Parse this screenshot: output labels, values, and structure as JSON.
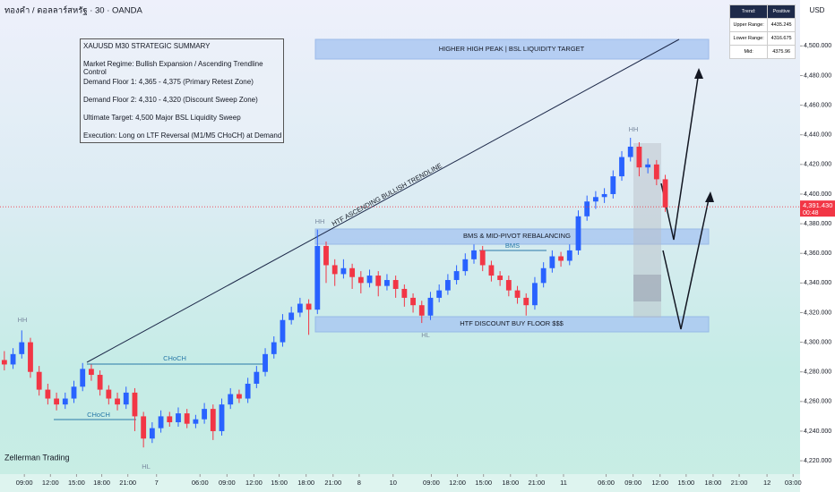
{
  "chart_data": {
    "type": "candlestick",
    "title": "ทองคำ / ดอลลาร์สหรัฐ · 30 · OANDA",
    "currency": "USD",
    "up_color": "#2962ff",
    "down_color": "#f23645",
    "xlim": [
      0,
      92
    ],
    "ylim": [
      4211,
      4531
    ],
    "xticks": [
      {
        "value": 2.8,
        "label": "09:00"
      },
      {
        "value": 5.8,
        "label": "12:00"
      },
      {
        "value": 8.8,
        "label": "15:00"
      },
      {
        "value": 11.7,
        "label": "18:00"
      },
      {
        "value": 14.7,
        "label": "21:00"
      },
      {
        "value": 18.0,
        "label": "7"
      },
      {
        "value": 23.0,
        "label": "06:00"
      },
      {
        "value": 26.1,
        "label": "09:00"
      },
      {
        "value": 29.2,
        "label": "12:00"
      },
      {
        "value": 32.1,
        "label": "15:00"
      },
      {
        "value": 35.2,
        "label": "18:00"
      },
      {
        "value": 38.3,
        "label": "21:00"
      },
      {
        "value": 41.3,
        "label": "8"
      },
      {
        "value": 45.2,
        "label": "10"
      },
      {
        "value": 49.6,
        "label": "09:00"
      },
      {
        "value": 52.6,
        "label": "12:00"
      },
      {
        "value": 55.6,
        "label": "15:00"
      },
      {
        "value": 58.7,
        "label": "18:00"
      },
      {
        "value": 61.7,
        "label": "21:00"
      },
      {
        "value": 64.8,
        "label": "11"
      },
      {
        "value": 69.7,
        "label": "06:00"
      },
      {
        "value": 72.8,
        "label": "09:00"
      },
      {
        "value": 75.9,
        "label": "12:00"
      },
      {
        "value": 78.9,
        "label": "15:00"
      },
      {
        "value": 82.0,
        "label": "18:00"
      },
      {
        "value": 85.0,
        "label": "21:00"
      },
      {
        "value": 88.2,
        "label": "12"
      },
      {
        "value": 91.2,
        "label": "03:00"
      }
    ],
    "yticks": [
      {
        "value": 4220,
        "label": "4,220.000"
      },
      {
        "value": 4240,
        "label": "4,240.000"
      },
      {
        "value": 4260,
        "label": "4,260.000"
      },
      {
        "value": 4280,
        "label": "4,280.000"
      },
      {
        "value": 4300,
        "label": "4,300.000"
      },
      {
        "value": 4320,
        "label": "4,320.000"
      },
      {
        "value": 4340,
        "label": "4,340.000"
      },
      {
        "value": 4360,
        "label": "4,360.000"
      },
      {
        "value": 4380,
        "label": "4,380.000"
      },
      {
        "value": 4400,
        "label": "4,400.000"
      },
      {
        "value": 4420,
        "label": "4,420.000"
      },
      {
        "value": 4440,
        "label": "4,440.000"
      },
      {
        "value": 4460,
        "label": "4,460.000"
      },
      {
        "value": 4480,
        "label": "4,480.000"
      },
      {
        "value": 4500,
        "label": "4,500.000"
      }
    ],
    "last_price": {
      "value": 4391.43,
      "label": "4,391.430"
    },
    "countdown": "00:48",
    "candles": [
      [
        4288,
        4294,
        4281,
        4285
      ],
      [
        4285,
        4296,
        4282,
        4292
      ],
      [
        4292,
        4308,
        4289,
        4300
      ],
      [
        4300,
        4303,
        4276,
        4280
      ],
      [
        4280,
        4284,
        4264,
        4268
      ],
      [
        4268,
        4272,
        4258,
        4262
      ],
      [
        4262,
        4266,
        4254,
        4258
      ],
      [
        4258,
        4266,
        4255,
        4262
      ],
      [
        4262,
        4274,
        4259,
        4270
      ],
      [
        4270,
        4286,
        4267,
        4282
      ],
      [
        4282,
        4285,
        4274,
        4278
      ],
      [
        4278,
        4281,
        4264,
        4268
      ],
      [
        4268,
        4271,
        4258,
        4262
      ],
      [
        4262,
        4266,
        4254,
        4258
      ],
      [
        4258,
        4270,
        4255,
        4266
      ],
      [
        4266,
        4269,
        4240,
        4250
      ],
      [
        4250,
        4253,
        4229,
        4235
      ],
      [
        4235,
        4246,
        4232,
        4242
      ],
      [
        4242,
        4254,
        4239,
        4250
      ],
      [
        4250,
        4253,
        4243,
        4246
      ],
      [
        4246,
        4256,
        4243,
        4252
      ],
      [
        4252,
        4255,
        4242,
        4245
      ],
      [
        4245,
        4251,
        4242,
        4248
      ],
      [
        4248,
        4259,
        4245,
        4255
      ],
      [
        4255,
        4258,
        4234,
        4240
      ],
      [
        4240,
        4262,
        4237,
        4258
      ],
      [
        4258,
        4269,
        4255,
        4265
      ],
      [
        4265,
        4268,
        4259,
        4262
      ],
      [
        4262,
        4276,
        4259,
        4272
      ],
      [
        4272,
        4284,
        4269,
        4280
      ],
      [
        4280,
        4296,
        4277,
        4292
      ],
      [
        4292,
        4304,
        4289,
        4300
      ],
      [
        4300,
        4319,
        4297,
        4315
      ],
      [
        4315,
        4324,
        4312,
        4320
      ],
      [
        4320,
        4330,
        4317,
        4326
      ],
      [
        4326,
        4329,
        4305,
        4322
      ],
      [
        4322,
        4376,
        4319,
        4365
      ],
      [
        4365,
        4368,
        4340,
        4352
      ],
      [
        4352,
        4356,
        4338,
        4346
      ],
      [
        4346,
        4356,
        4343,
        4350
      ],
      [
        4350,
        4353,
        4336,
        4344
      ],
      [
        4344,
        4348,
        4333,
        4340
      ],
      [
        4340,
        4349,
        4337,
        4345
      ],
      [
        4345,
        4348,
        4331,
        4338
      ],
      [
        4338,
        4346,
        4335,
        4342
      ],
      [
        4342,
        4345,
        4330,
        4336
      ],
      [
        4336,
        4339,
        4324,
        4330
      ],
      [
        4330,
        4333,
        4320,
        4325
      ],
      [
        4325,
        4328,
        4313,
        4318
      ],
      [
        4318,
        4334,
        4315,
        4330
      ],
      [
        4330,
        4339,
        4327,
        4335
      ],
      [
        4335,
        4346,
        4332,
        4342
      ],
      [
        4342,
        4352,
        4339,
        4348
      ],
      [
        4348,
        4360,
        4345,
        4356
      ],
      [
        4356,
        4366,
        4353,
        4362
      ],
      [
        4362,
        4365,
        4348,
        4352
      ],
      [
        4352,
        4355,
        4341,
        4345
      ],
      [
        4345,
        4348,
        4338,
        4342
      ],
      [
        4342,
        4345,
        4331,
        4335
      ],
      [
        4335,
        4338,
        4326,
        4330
      ],
      [
        4330,
        4333,
        4318,
        4325
      ],
      [
        4325,
        4344,
        4322,
        4340
      ],
      [
        4340,
        4354,
        4337,
        4350
      ],
      [
        4350,
        4362,
        4347,
        4358
      ],
      [
        4358,
        4361,
        4351,
        4355
      ],
      [
        4355,
        4366,
        4352,
        4362
      ],
      [
        4362,
        4389,
        4359,
        4385
      ],
      [
        4385,
        4399,
        4382,
        4395
      ],
      [
        4395,
        4402,
        4390,
        4398
      ],
      [
        4398,
        4404,
        4394,
        4400
      ],
      [
        4400,
        4416,
        4397,
        4412
      ],
      [
        4412,
        4429,
        4409,
        4425
      ],
      [
        4425,
        4438,
        4422,
        4432
      ],
      [
        4432,
        4435,
        4412,
        4418
      ],
      [
        4418,
        4424,
        4414,
        4420
      ],
      [
        4420,
        4423,
        4406,
        4410
      ],
      [
        4410,
        4413,
        4388,
        4391
      ]
    ]
  },
  "summary": {
    "lines": [
      "XAUUSD M30 STRATEGIC SUMMARY",
      "Market Regime: Bullish Expansion / Ascending Trendline Control",
      "Demand Floor 1: 4,365 - 4,375 (Primary Retest Zone)",
      "Demand Floor 2: 4,310 - 4,320 (Discount Sweep Zone)",
      "Ultimate Target: 4,500 Major BSL Liquidity Sweep",
      "Execution: Long on LTF Reversal (M1/M5 CHoCH) at Demand"
    ]
  },
  "annotations": {
    "zones": [
      "HIGHER HIGH PEAK | BSL LIQUIDITY TARGET",
      "BMS & MID-PIVOT REBALANCING",
      "HTF DISCOUNT BUY FLOOR $$$"
    ],
    "trendline": "HTF ASCENDING BULLISH TRENDLINE",
    "choch": "CHoCH",
    "bms": "BMS",
    "hh": "HH",
    "hl": "HL",
    "watermark": "Zellerman Trading"
  },
  "info_table": {
    "header": [
      "Trend:",
      "Positive"
    ],
    "rows": [
      [
        "Upper Range:",
        "4435.245"
      ],
      [
        "Lower Range:",
        "4316.675"
      ],
      [
        "Mid:",
        "4375.96"
      ]
    ]
  }
}
